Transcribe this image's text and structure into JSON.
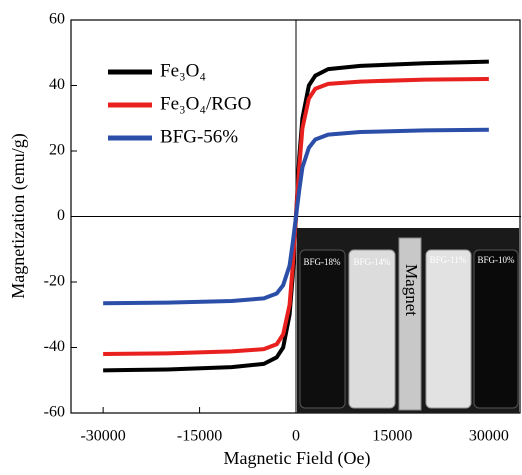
{
  "chart_data": {
    "type": "line",
    "x_label": "Magnetic Field (Oe)",
    "y_label": "Magnetization (emu/g)",
    "x": [
      -30000,
      -20000,
      -10000,
      -5000,
      -3000,
      -2000,
      -1000,
      -500,
      0,
      500,
      1000,
      2000,
      3000,
      5000,
      10000,
      20000,
      30000
    ],
    "series": [
      {
        "name": "Fe₃O₄",
        "color": "#000000",
        "values": [
          -47,
          -46.7,
          -46,
          -45,
          -43,
          -40,
          -30,
          -18,
          0,
          18,
          30,
          40,
          43,
          45,
          46,
          46.8,
          47.3
        ]
      },
      {
        "name": "Fe₃O₄/RGO",
        "color": "#e8201e",
        "values": [
          -42,
          -41.8,
          -41.2,
          -40.5,
          -39,
          -36,
          -27,
          -15,
          0,
          15,
          27,
          36,
          39,
          40.5,
          41.2,
          41.8,
          42
        ]
      },
      {
        "name": "BFG-56%",
        "color": "#2b4fa8",
        "values": [
          -26.5,
          -26.3,
          -25.8,
          -25,
          -23.5,
          -21,
          -15,
          -8,
          0,
          8,
          15,
          21,
          23.5,
          25,
          25.8,
          26.3,
          26.5
        ]
      }
    ],
    "xlim": [
      -35000,
      35000
    ],
    "xticks": [
      -30000,
      -15000,
      0,
      15000,
      30000
    ],
    "ylim": [
      -60,
      60
    ],
    "yticks": [
      -60,
      -40,
      -20,
      0,
      20,
      40,
      60
    ],
    "legend": "upper left"
  },
  "inset": {
    "labels": [
      "BFG-18%",
      "BFG-14%",
      "BFG-11%",
      "BFG-10%"
    ],
    "magnet": "Magnet"
  }
}
